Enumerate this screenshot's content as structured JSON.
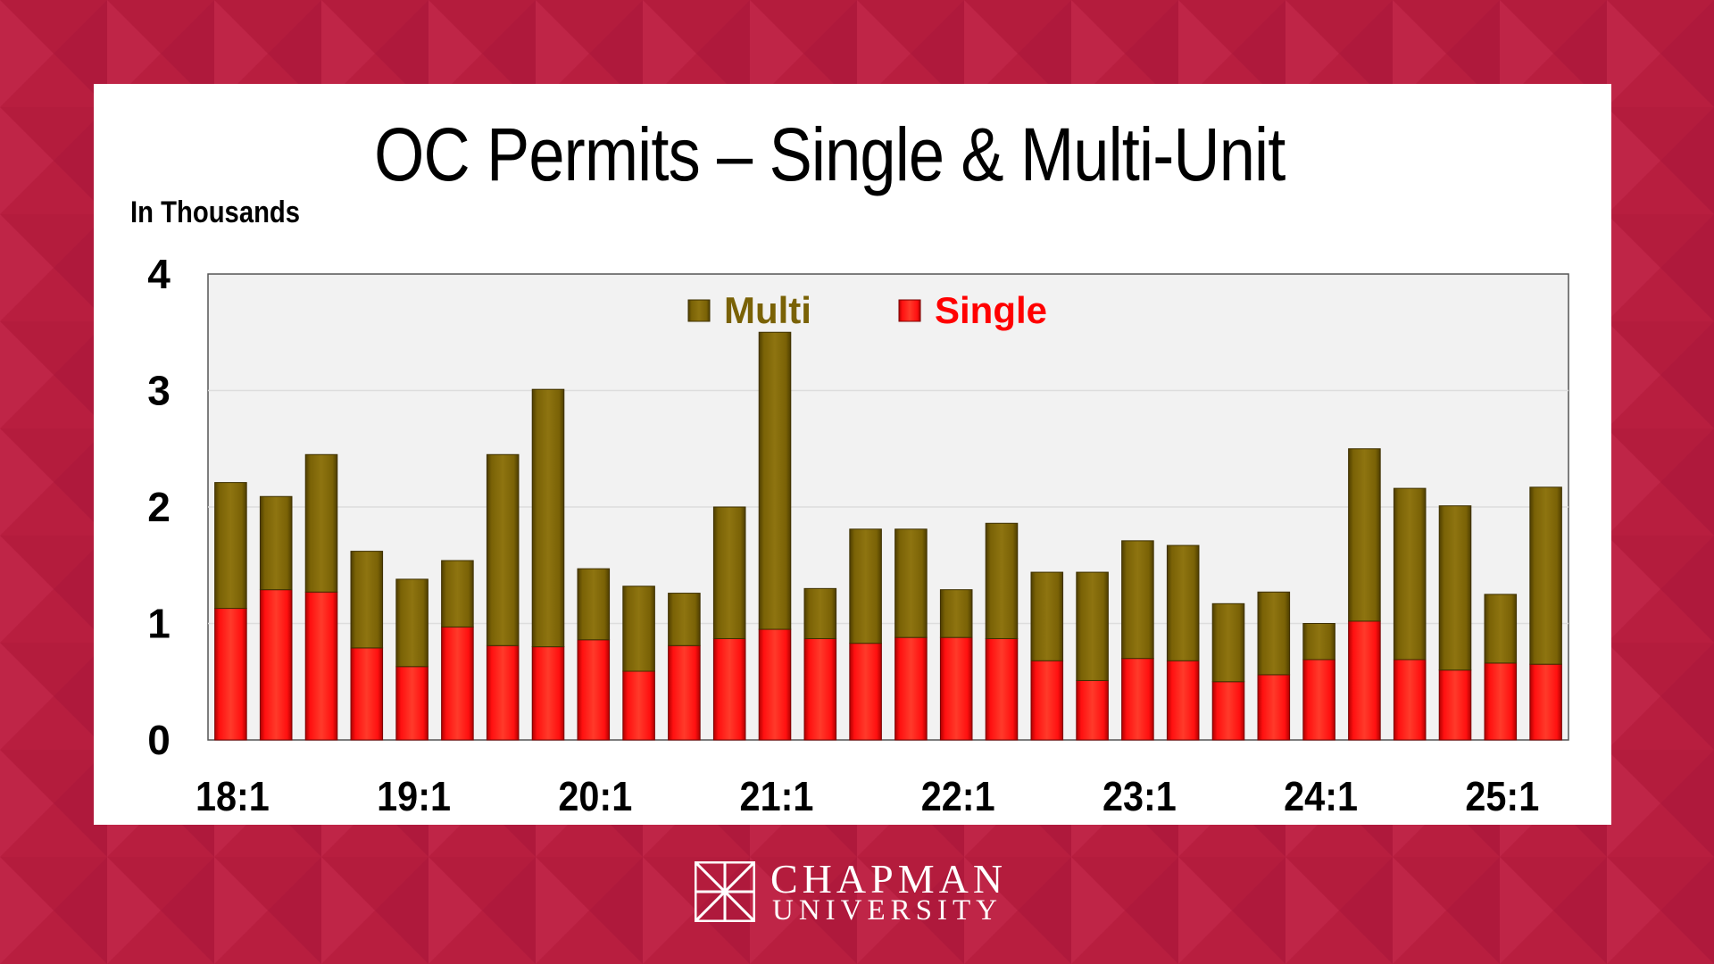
{
  "title": "OC Permits – Single & Multi-Unit",
  "unit_label": "In Thousands",
  "colors": {
    "background": "#b81e3f",
    "single": "#ff1010",
    "multi": "#7a6206",
    "plot_bg": "#f2f2f2"
  },
  "logo": {
    "name": "CHAPMAN",
    "sub": "UNIVERSITY",
    "icon": "chapman-window-icon"
  },
  "chart_data": {
    "type": "bar",
    "stacked": true,
    "title": "OC Permits – Single & Multi-Unit",
    "ylabel": "In Thousands",
    "ylim": [
      0,
      4
    ],
    "yticks": [
      0,
      1,
      2,
      3,
      4
    ],
    "grid": true,
    "legend_position": "top-center",
    "x_tick_labels": [
      "18:1",
      "19:1",
      "20:1",
      "21:1",
      "22:1",
      "23:1",
      "24:1",
      "25:1"
    ],
    "categories": [
      "18:1",
      "18:2",
      "18:3",
      "18:4",
      "19:1",
      "19:2",
      "19:3",
      "19:4",
      "20:1",
      "20:2",
      "20:3",
      "20:4",
      "21:1",
      "21:2",
      "21:3",
      "21:4",
      "22:1",
      "22:2",
      "22:3",
      "22:4",
      "23:1",
      "23:2",
      "23:3",
      "23:4",
      "24:1",
      "24:2",
      "24:3",
      "24:4",
      "25:1",
      "25:2"
    ],
    "series": [
      {
        "name": "Single",
        "values": [
          1.13,
          1.29,
          1.27,
          0.79,
          0.63,
          0.97,
          0.81,
          0.8,
          0.86,
          0.59,
          0.81,
          0.87,
          0.95,
          0.87,
          0.83,
          0.88,
          0.88,
          0.87,
          0.68,
          0.51,
          0.7,
          0.68,
          0.5,
          0.56,
          0.69,
          1.02,
          0.69,
          0.6,
          0.66,
          0.65
        ]
      },
      {
        "name": "Multi",
        "values": [
          1.08,
          0.8,
          1.18,
          0.83,
          0.75,
          0.57,
          1.64,
          2.21,
          0.61,
          0.73,
          0.45,
          1.13,
          2.55,
          0.43,
          0.98,
          0.93,
          0.41,
          0.99,
          0.76,
          0.93,
          1.01,
          0.99,
          0.67,
          0.71,
          0.31,
          1.48,
          1.47,
          1.41,
          0.59,
          1.52
        ]
      }
    ]
  }
}
